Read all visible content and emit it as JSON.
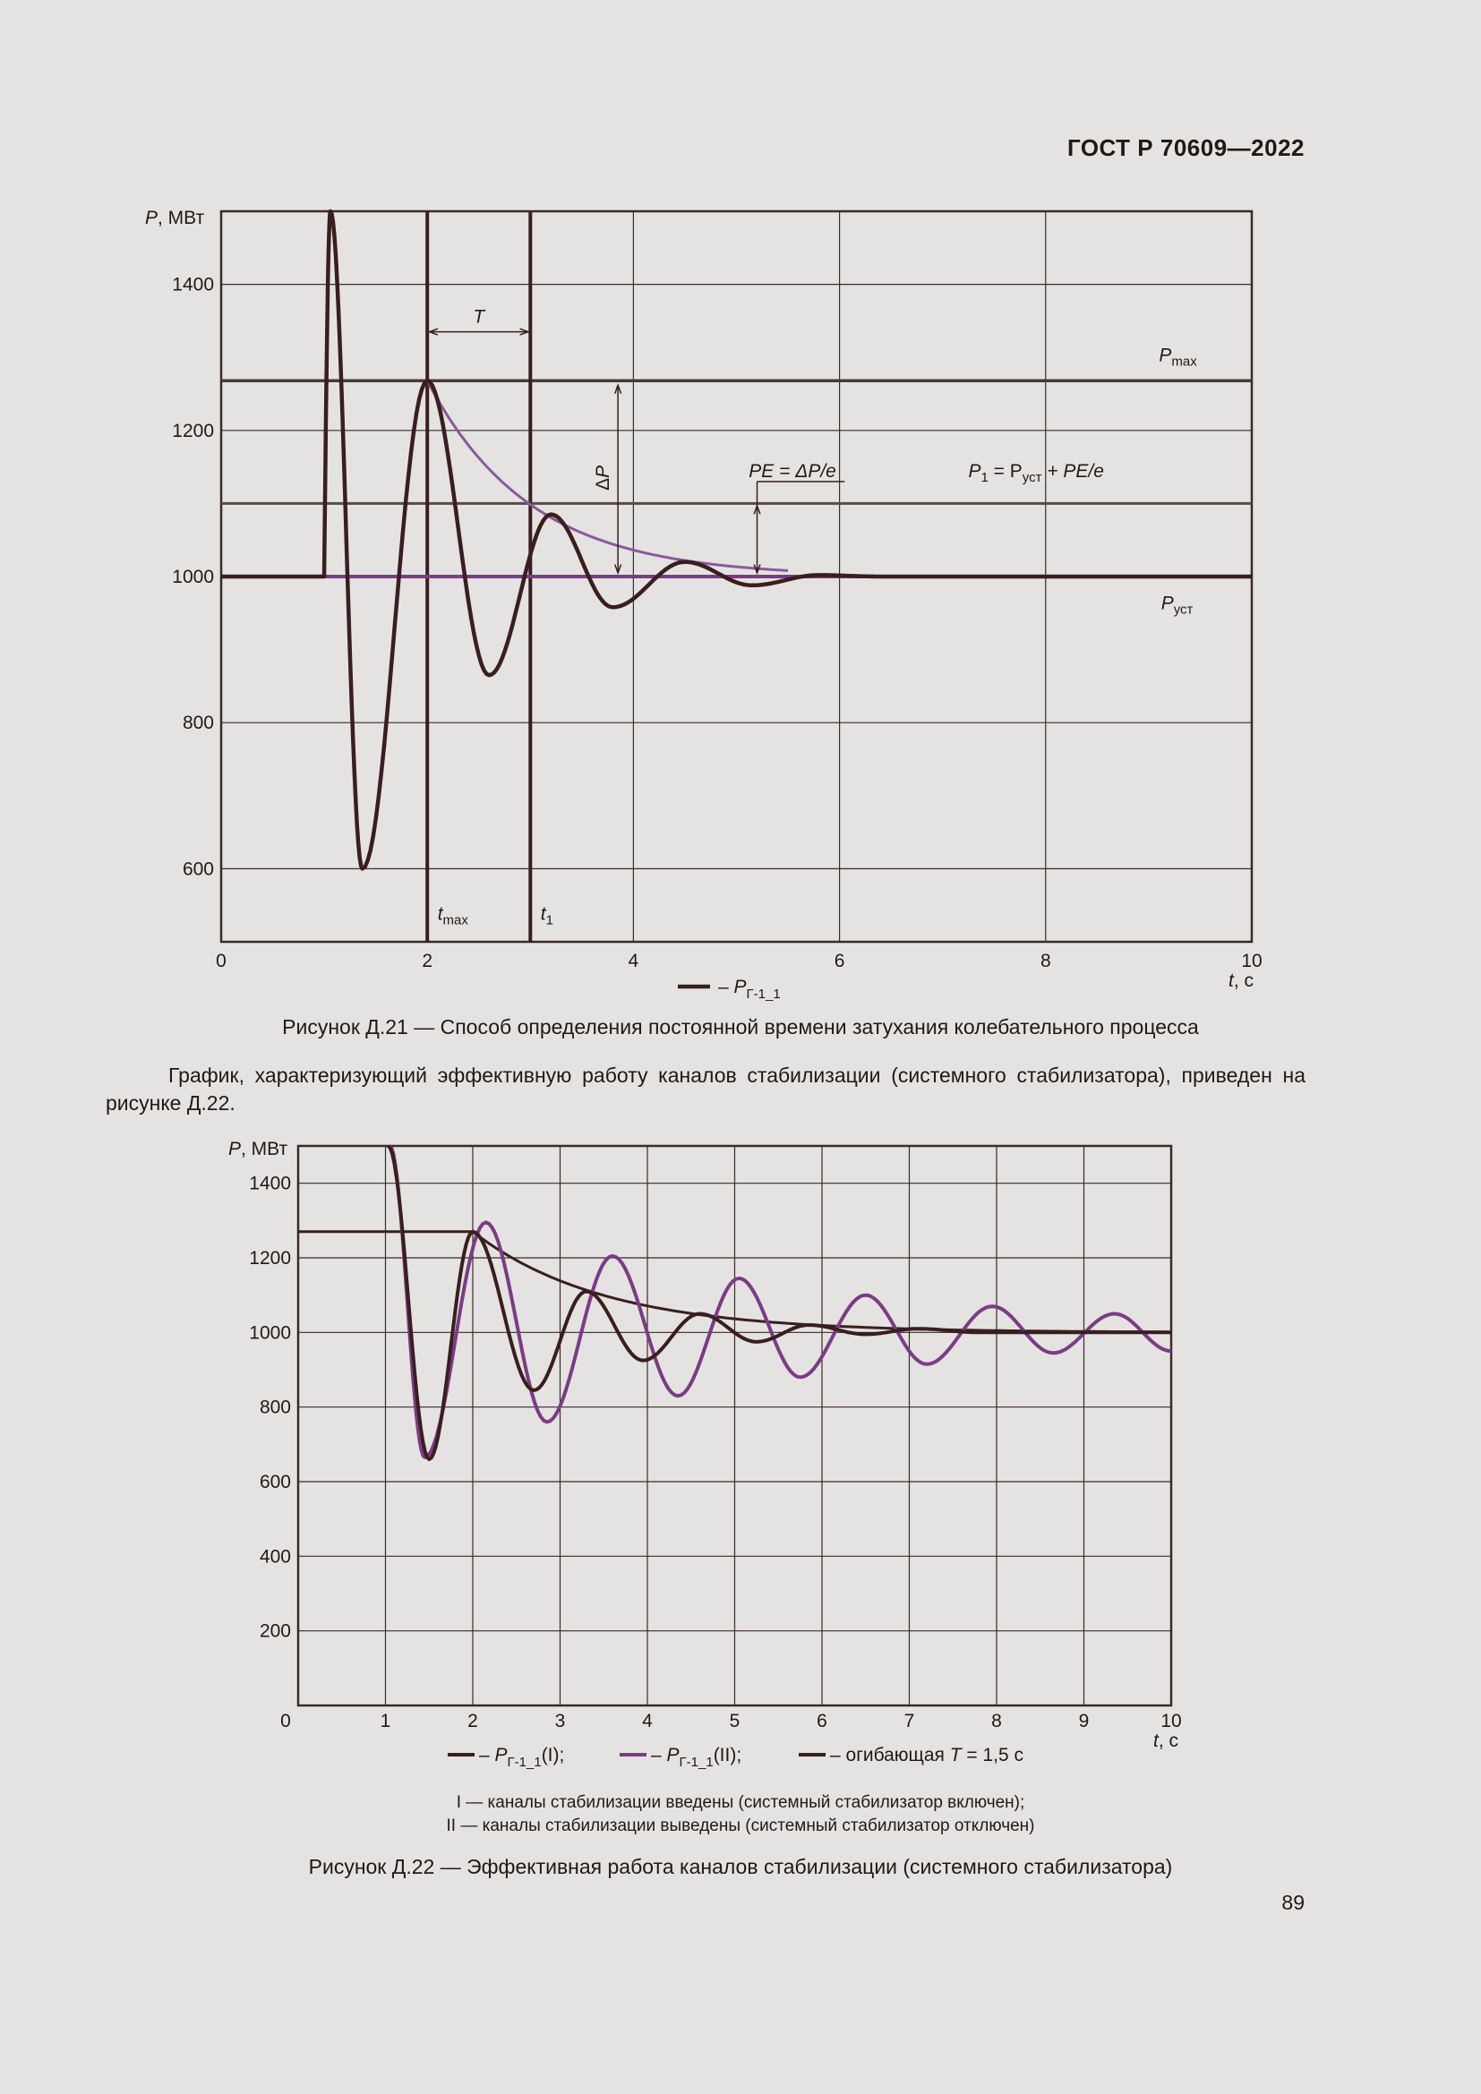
{
  "header": {
    "doc_id": "ГОСТ Р 70609—2022"
  },
  "page_number": "89",
  "colors": {
    "dark": "#3a1e1e",
    "purple": "#7b3b86",
    "purple_light": "#8a5a9a",
    "grid": "#3a2a28",
    "ink": "#231815"
  },
  "figure1": {
    "caption": "Рисунок Д.21 — Способ определения постоянной времени затухания колебательного процесса",
    "chart_data": {
      "type": "line",
      "ylabel": "P, МВт",
      "xlabel": "t, с",
      "xlim": [
        0,
        10
      ],
      "ylim": [
        500,
        1500
      ],
      "x_ticks": [
        "0",
        "2",
        "4",
        "6",
        "8",
        "10"
      ],
      "y_ticks": [
        "600",
        "800",
        "1000",
        "1200",
        "1400"
      ],
      "x_tick_values": [
        0,
        2,
        4,
        6,
        8,
        10
      ],
      "y_tick_values": [
        600,
        800,
        1000,
        1200,
        1400
      ],
      "series": [
        {
          "name": "P_Г-1_1",
          "description": "damped oscillation",
          "params": {
            "start": 1.0,
            "peak": 1500,
            "p_set": 1000,
            "first_min": 600,
            "tmax": 2.0,
            "pmax": 1268,
            "min2": 865,
            "t_min2": 2.6,
            "t1": 3.0,
            "max3": 1085,
            "min3": 958,
            "max4": 1020,
            "min4": 988
          }
        },
        {
          "name": "envelope",
          "description": "exponential envelope P = 1000 + 268·e^(-(t-2)/1)",
          "t_from": 2,
          "t_to": 5.5,
          "amplitude": 268,
          "tau": 1.0
        }
      ],
      "reference_lines": {
        "p_max": 1268,
        "p_1": 1100,
        "p_set": 1000,
        "t_max": 2.0,
        "t_1": 3.0
      },
      "annotations": {
        "T": "T",
        "delta_p": "ΔP",
        "pe": "PE = ΔP/e",
        "p1_main": "P",
        "p1_sub": "1",
        "p1_rest": " = P",
        "p1_sub2": "уст",
        "p1_tail": " + PE/e",
        "pmax_main": "P",
        "pmax_sub": "max",
        "pust_main": "P",
        "pust_sub": "уст",
        "tmax_main": "t",
        "tmax_sub": "max",
        "t1_main": "t",
        "t1_sub": "1"
      },
      "legend": {
        "label_prefix": "– P",
        "label_sub": "Г-1_1"
      }
    }
  },
  "paragraph": "График, характеризующий эффективную работу каналов стабилизации (системного стабилизатора), приведен на рисунке Д.22.",
  "figure2": {
    "caption": "Рисунок Д.22 — Эффективная работа каналов стабилизации (системного стабилизатора)",
    "notes": [
      "I — каналы стабилизации введены (системный стабилизатор включен);",
      "II — каналы стабилизации выведены (системный стабилизатор отключен)"
    ],
    "chart_data": {
      "type": "line",
      "ylabel": "P, МВт",
      "xlabel": "t, с",
      "xlim": [
        0,
        10
      ],
      "ylim": [
        0,
        1500
      ],
      "x_ticks": [
        "0",
        "1",
        "2",
        "3",
        "4",
        "5",
        "6",
        "7",
        "8",
        "9",
        "10"
      ],
      "y_ticks": [
        "200",
        "400",
        "600",
        "800",
        "1000",
        "1200",
        "1400"
      ],
      "x_tick_values": [
        0,
        1,
        2,
        3,
        4,
        5,
        6,
        7,
        8,
        9,
        10
      ],
      "y_tick_values": [
        200,
        400,
        600,
        800,
        1000,
        1200,
        1400
      ],
      "series": [
        {
          "name": "P_Г-1_1(I)",
          "description": "stabilizer on, strongly damped",
          "p_set": 1000,
          "min1": 660,
          "t_min1": 1.5,
          "max1": 1270,
          "t_max1": 2.0
        },
        {
          "name": "P_Г-1_1(II)",
          "description": "stabilizer off, weakly damped",
          "p_set": 1000,
          "min1": 665,
          "t_min1": 1.45,
          "max1": 1295,
          "t_max1": 2.15,
          "end_value": 950
        },
        {
          "name": "огибающая T = 1,5 с",
          "description": "envelope",
          "hold_value": 1270,
          "t_hold_end": 2.0,
          "tau": 1.5
        }
      ],
      "legend": [
        {
          "prefix": "– P",
          "sub": "Г-1_1",
          "suffix": "(I);"
        },
        {
          "prefix": "– P",
          "sub": "Г-1_1",
          "suffix": "(II);"
        },
        {
          "prefix": "– огибающая ",
          "italic": "T",
          "suffix": " = 1,5 с"
        }
      ]
    }
  }
}
